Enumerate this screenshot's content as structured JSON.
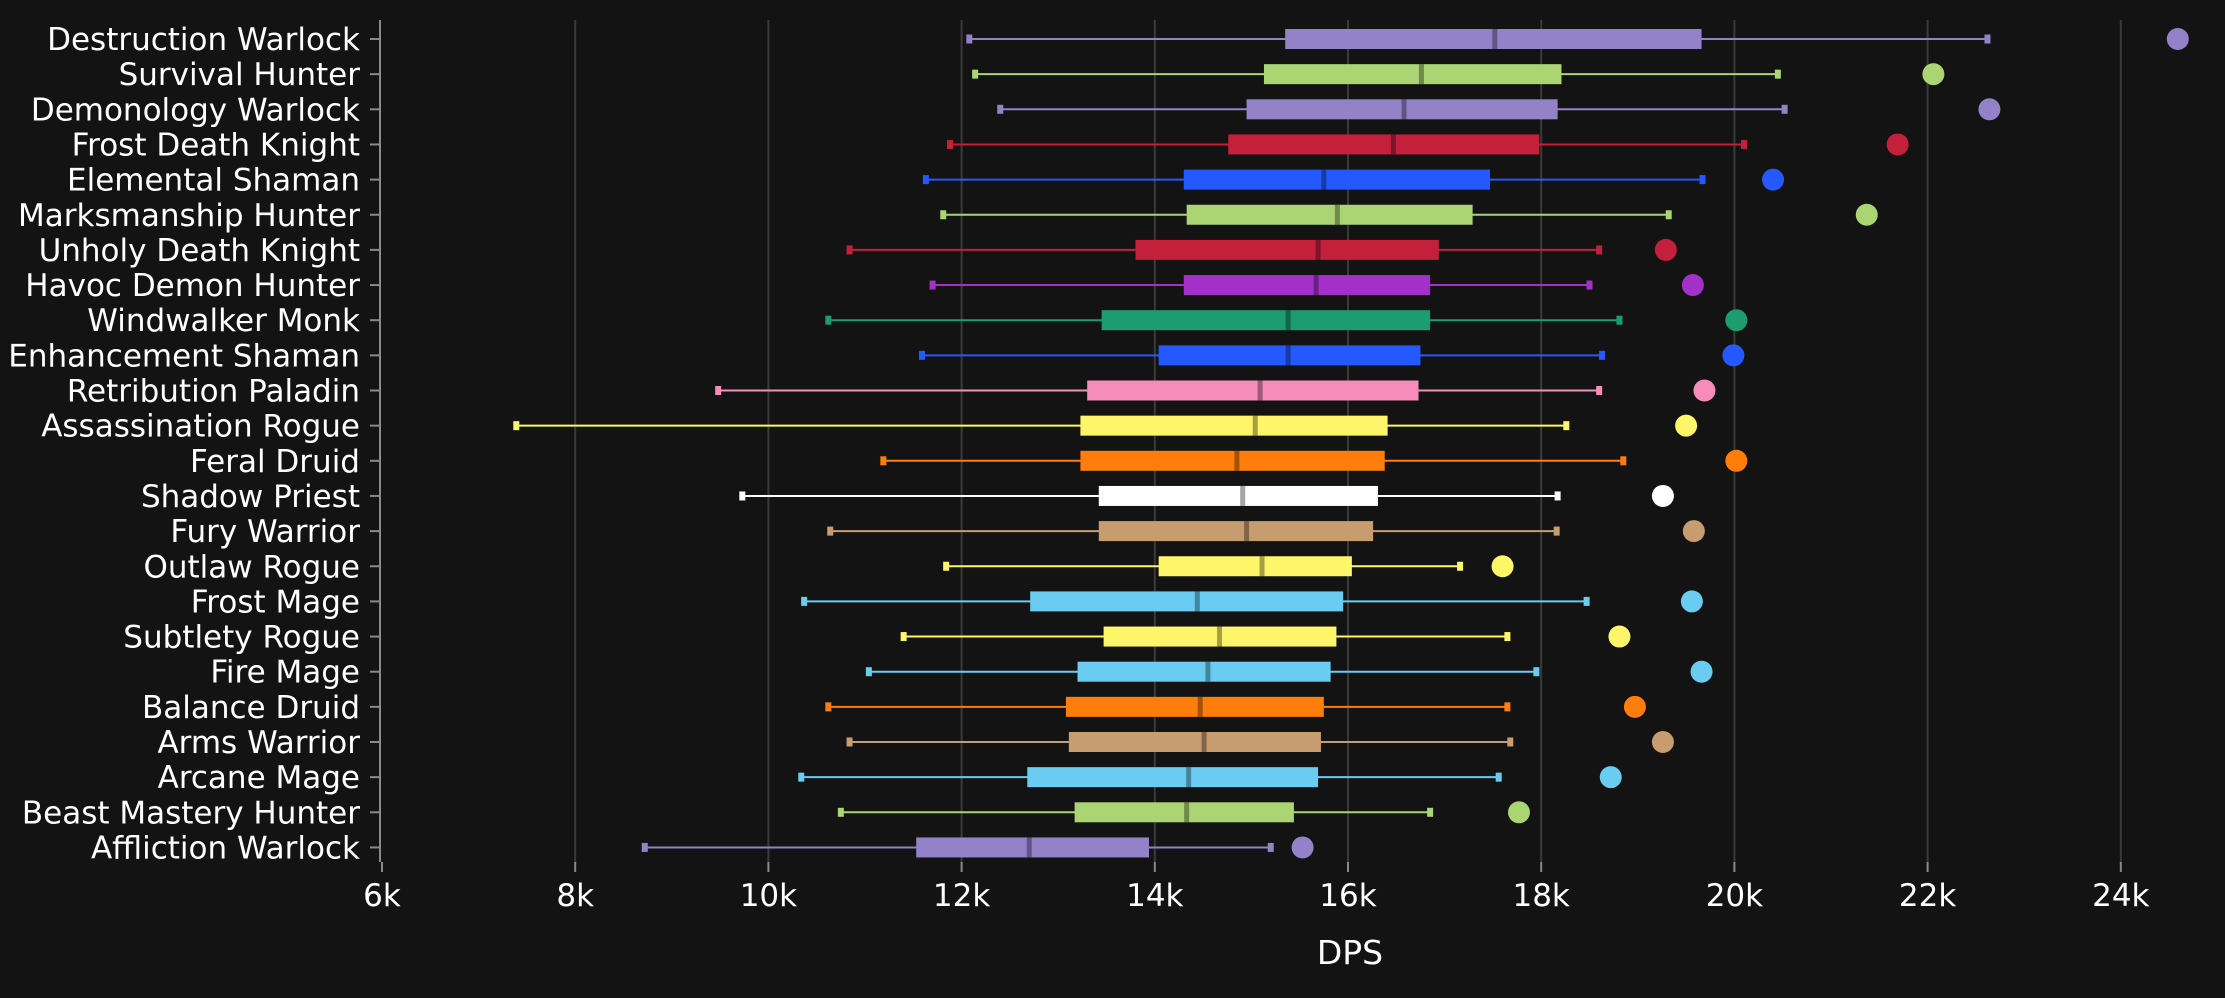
{
  "chart_data": {
    "type": "boxplot",
    "xlabel": "DPS",
    "xlim": [
      6000,
      24600
    ],
    "x_ticks": [
      6000,
      8000,
      10000,
      12000,
      14000,
      16000,
      18000,
      20000,
      22000,
      24000
    ],
    "x_tick_labels": [
      "6k",
      "8k",
      "10k",
      "12k",
      "14k",
      "16k",
      "18k",
      "20k",
      "22k",
      "24k"
    ],
    "grid": true,
    "legend": "none",
    "series": [
      {
        "name": "Destruction Warlock",
        "color": "#9482c9",
        "min": 12080,
        "q1": 15350,
        "median": 17520,
        "q3": 19660,
        "max": 22620,
        "outlier": 24590
      },
      {
        "name": "Survival Hunter",
        "color": "#abd473",
        "min": 12140,
        "q1": 15130,
        "median": 16760,
        "q3": 18210,
        "max": 20450,
        "outlier": 22060
      },
      {
        "name": "Demonology Warlock",
        "color": "#9482c9",
        "min": 12400,
        "q1": 14950,
        "median": 16580,
        "q3": 18170,
        "max": 20520,
        "outlier": 22640
      },
      {
        "name": "Frost Death Knight",
        "color": "#c41f3b",
        "min": 11880,
        "q1": 14760,
        "median": 16470,
        "q3": 17980,
        "max": 20100,
        "outlier": 21690
      },
      {
        "name": "Elemental Shaman",
        "color": "#2459ff",
        "min": 11630,
        "q1": 14300,
        "median": 15750,
        "q3": 17470,
        "max": 19670,
        "outlier": 20400
      },
      {
        "name": "Marksmanship Hunter",
        "color": "#abd473",
        "min": 11810,
        "q1": 14330,
        "median": 15890,
        "q3": 17290,
        "max": 19320,
        "outlier": 21370
      },
      {
        "name": "Unholy Death Knight",
        "color": "#c41f3b",
        "min": 10840,
        "q1": 13800,
        "median": 15690,
        "q3": 16940,
        "max": 18600,
        "outlier": 19290
      },
      {
        "name": "Havoc Demon Hunter",
        "color": "#a330c9",
        "min": 11700,
        "q1": 14300,
        "median": 15670,
        "q3": 16850,
        "max": 18500,
        "outlier": 19570
      },
      {
        "name": "Windwalker Monk",
        "color": "#1d9d6f",
        "min": 10620,
        "q1": 13450,
        "median": 15380,
        "q3": 16850,
        "max": 18810,
        "outlier": 20020
      },
      {
        "name": "Enhancement Shaman",
        "color": "#2459ff",
        "min": 11590,
        "q1": 14040,
        "median": 15380,
        "q3": 16750,
        "max": 18630,
        "outlier": 19990
      },
      {
        "name": "Retribution Paladin",
        "color": "#f58cba",
        "min": 9480,
        "q1": 13300,
        "median": 15090,
        "q3": 16730,
        "max": 18600,
        "outlier": 19690
      },
      {
        "name": "Assassination Rogue",
        "color": "#fff569",
        "min": 7390,
        "q1": 13230,
        "median": 15040,
        "q3": 16410,
        "max": 18260,
        "outlier": 19500
      },
      {
        "name": "Feral Druid",
        "color": "#ff7d0a",
        "min": 11190,
        "q1": 13230,
        "median": 14850,
        "q3": 16380,
        "max": 18850,
        "outlier": 20020
      },
      {
        "name": "Shadow Priest",
        "color": "#ffffff",
        "min": 9730,
        "q1": 13420,
        "median": 14910,
        "q3": 16310,
        "max": 18170,
        "outlier": 19260
      },
      {
        "name": "Fury Warrior",
        "color": "#c79c6e",
        "min": 10640,
        "q1": 13420,
        "median": 14950,
        "q3": 16260,
        "max": 18160,
        "outlier": 19580
      },
      {
        "name": "Outlaw Rogue",
        "color": "#fff569",
        "min": 11840,
        "q1": 14040,
        "median": 15110,
        "q3": 16040,
        "max": 17160,
        "outlier": 17600
      },
      {
        "name": "Frost Mage",
        "color": "#69ccf0",
        "min": 10370,
        "q1": 12710,
        "median": 14440,
        "q3": 15950,
        "max": 18470,
        "outlier": 19560
      },
      {
        "name": "Subtlety Rogue",
        "color": "#fff569",
        "min": 11400,
        "q1": 13470,
        "median": 14670,
        "q3": 15880,
        "max": 17650,
        "outlier": 18810
      },
      {
        "name": "Fire Mage",
        "color": "#69ccf0",
        "min": 11040,
        "q1": 13200,
        "median": 14550,
        "q3": 15820,
        "max": 17950,
        "outlier": 19660
      },
      {
        "name": "Balance Druid",
        "color": "#ff7d0a",
        "min": 10620,
        "q1": 13080,
        "median": 14470,
        "q3": 15750,
        "max": 17650,
        "outlier": 18970
      },
      {
        "name": "Arms Warrior",
        "color": "#c79c6e",
        "min": 10840,
        "q1": 13110,
        "median": 14510,
        "q3": 15720,
        "max": 17680,
        "outlier": 19260
      },
      {
        "name": "Arcane Mage",
        "color": "#69ccf0",
        "min": 10340,
        "q1": 12680,
        "median": 14350,
        "q3": 15690,
        "max": 17560,
        "outlier": 18720
      },
      {
        "name": "Beast Mastery Hunter",
        "color": "#abd473",
        "min": 10750,
        "q1": 13170,
        "median": 14330,
        "q3": 15440,
        "max": 16850,
        "outlier": 17770
      },
      {
        "name": "Affliction Warlock",
        "color": "#9482c9",
        "min": 8720,
        "q1": 11530,
        "median": 12700,
        "q3": 13940,
        "max": 15200,
        "outlier": 15530
      }
    ]
  }
}
